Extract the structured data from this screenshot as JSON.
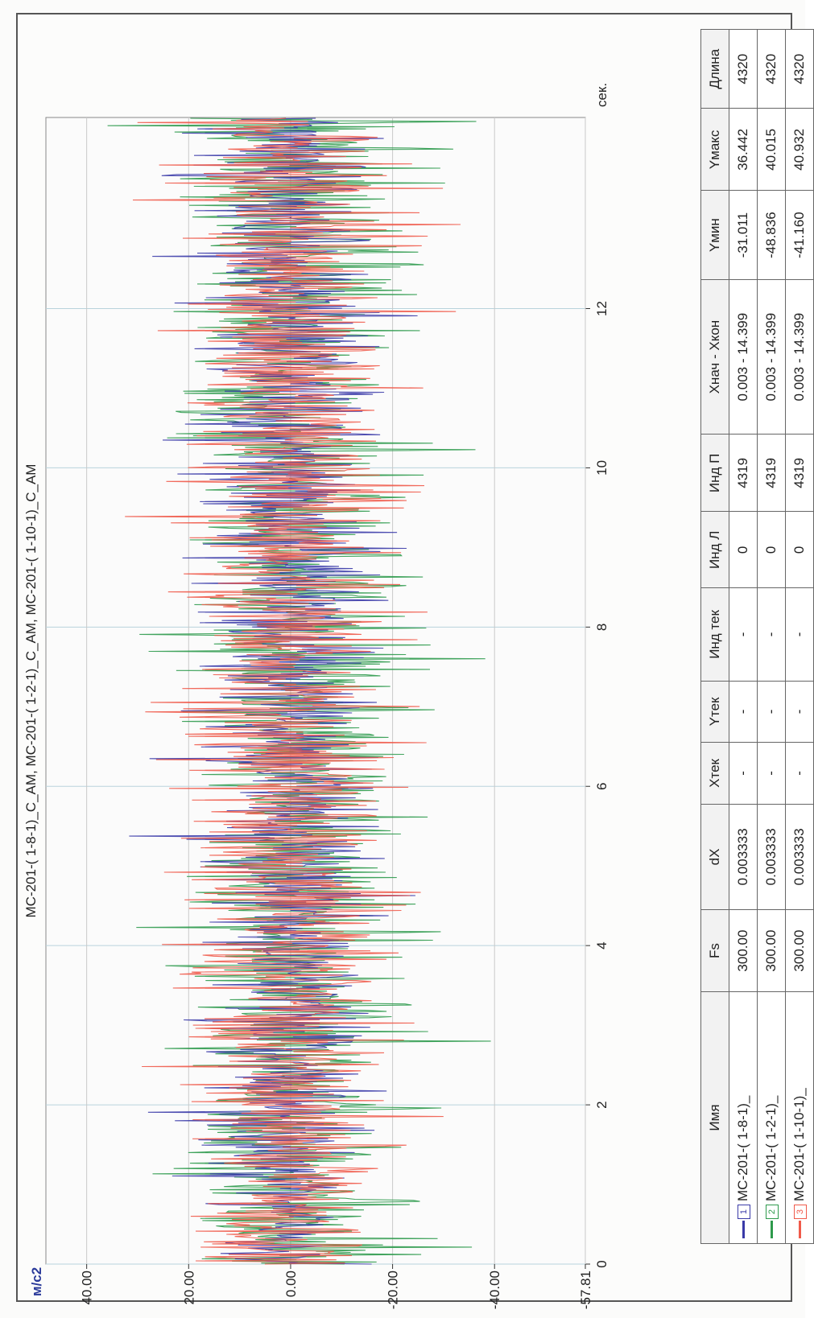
{
  "chart_data": {
    "type": "line",
    "title": "MC-201-( 1-8-1)_C_AM, MC-201-( 1-2-1)_C_AM, MC-201-( 1-10-1)_C_AM",
    "ylabel": "м/с2",
    "xlabel": "сек.",
    "xlim": [
      0,
      14.4
    ],
    "ylim": [
      -57.81,
      48
    ],
    "x_ticks": [
      "0",
      "2",
      "4",
      "6",
      "8",
      "10",
      "12"
    ],
    "y_ticks": [
      "40.00",
      "20.00",
      "0.00",
      "-20.00",
      "-40.00",
      "-57.81"
    ],
    "grid": true,
    "series": [
      {
        "name": "MC-201-( 1-8-1)_",
        "color": "#3a3aa8",
        "ymin": -31.011,
        "ymax": 36.442,
        "n": 4320
      },
      {
        "name": "MC-201-( 1-2-1)_",
        "color": "#2e9a4c",
        "ymin": -48.836,
        "ymax": 40.015,
        "n": 4320
      },
      {
        "name": "MC-201-( 1-10-1)_",
        "color": "#f05a4a",
        "ymin": -41.16,
        "ymax": 40.932,
        "n": 4320
      }
    ]
  },
  "table": {
    "headers": [
      "Имя",
      "Fs",
      "dX",
      "Xтек",
      "Yтек",
      "Инд тек",
      "Инд Л",
      "Инд П",
      "Xнач - Xкон",
      "Yмин",
      "Yмакс",
      "Длина"
    ],
    "rows": [
      {
        "idx": "1",
        "name": "MC-201-( 1-8-1)_",
        "fs": "300.00",
        "dx": "0.003333",
        "xtek": "-",
        "ytek": "-",
        "indtek": "-",
        "indl": "0",
        "indp": "4319",
        "xrange": "0.003 - 14.399",
        "ymin": "-31.011",
        "ymax": "36.442",
        "len": "4320",
        "color": "#3a3aa8"
      },
      {
        "idx": "2",
        "name": "MC-201-( 1-2-1)_",
        "fs": "300.00",
        "dx": "0.003333",
        "xtek": "-",
        "ytek": "-",
        "indtek": "-",
        "indl": "0",
        "indp": "4319",
        "xrange": "0.003 - 14.399",
        "ymin": "-48.836",
        "ymax": "40.015",
        "len": "4320",
        "color": "#2e9a4c"
      },
      {
        "idx": "3",
        "name": "MC-201-( 1-10-1)_",
        "fs": "300.00",
        "dx": "0.003333",
        "xtek": "-",
        "ytek": "-",
        "indtek": "-",
        "indl": "0",
        "indp": "4319",
        "xrange": "0.003 - 14.399",
        "ymin": "-41.160",
        "ymax": "40.932",
        "len": "4320",
        "color": "#f05a4a"
      }
    ]
  }
}
